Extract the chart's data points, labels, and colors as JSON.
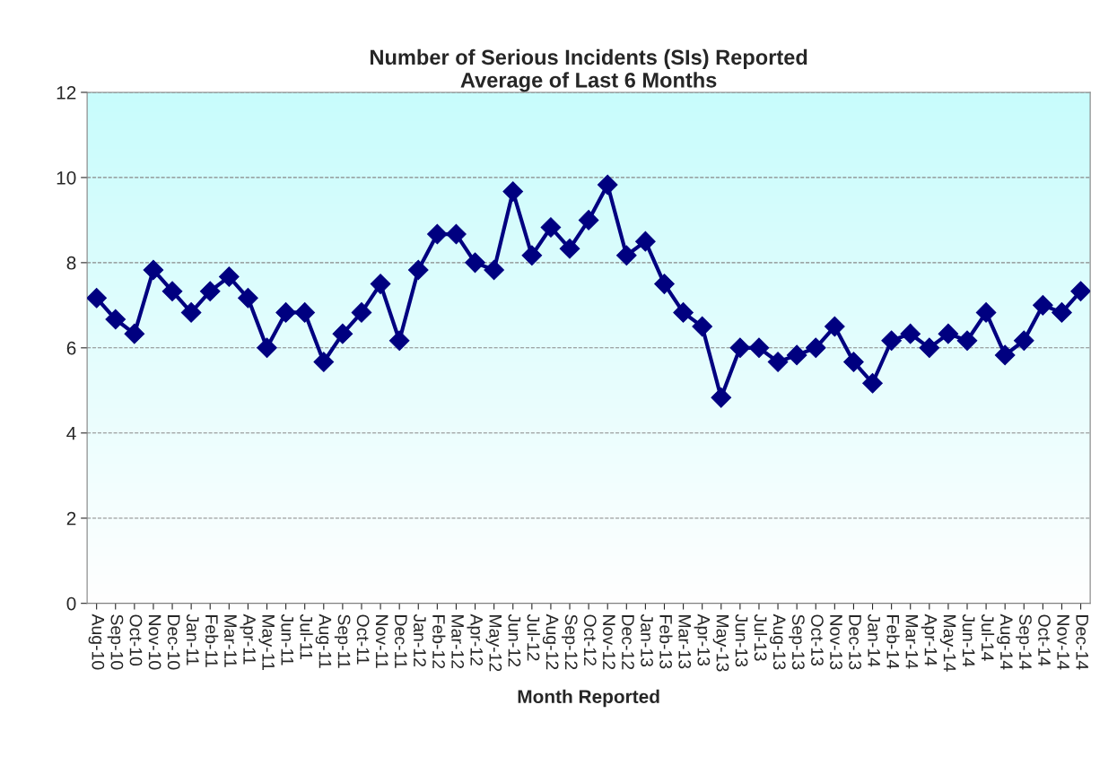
{
  "chart_data": {
    "type": "line",
    "title": "Number of Serious Incidents (SIs) Reported\nAverage of Last 6 Months",
    "xlabel": "Month Reported",
    "categories": [
      "Aug-10",
      "Sep-10",
      "Oct-10",
      "Nov-10",
      "Dec-10",
      "Jan-11",
      "Feb-11",
      "Mar-11",
      "Apr-11",
      "May-11",
      "Jun-11",
      "Jul-11",
      "Aug-11",
      "Sep-11",
      "Oct-11",
      "Nov-11",
      "Dec-11",
      "Jan-12",
      "Feb-12",
      "Mar-12",
      "Apr-12",
      "May-12",
      "Jun-12",
      "Jul-12",
      "Aug-12",
      "Sep-12",
      "Oct-12",
      "Nov-12",
      "Dec-12",
      "Jan-13",
      "Feb-13",
      "Mar-13",
      "Apr-13",
      "May-13",
      "Jun-13",
      "Jul-13",
      "Aug-13",
      "Sep-13",
      "Oct-13",
      "Nov-13",
      "Dec-13",
      "Jan-14",
      "Feb-14",
      "Mar-14",
      "Apr-14",
      "May-14",
      "Jun-14",
      "Jul-14",
      "Aug-14",
      "Sep-14",
      "Oct-14",
      "Nov-14",
      "Dec-14"
    ],
    "series": [
      {
        "color": "#000080",
        "values": [
          7.17,
          6.67,
          6.33,
          7.83,
          7.33,
          6.83,
          7.33,
          7.67,
          7.17,
          6.0,
          6.83,
          6.83,
          5.67,
          6.33,
          6.83,
          7.5,
          6.17,
          7.83,
          8.67,
          8.67,
          8.0,
          7.83,
          9.67,
          8.17,
          8.83,
          8.33,
          9.0,
          9.83,
          8.17,
          8.5,
          7.5,
          6.83,
          6.5,
          4.83,
          6.0,
          6.0,
          5.67,
          5.83,
          6.0,
          6.5,
          5.67,
          5.17,
          6.17,
          6.33,
          6.0,
          6.33,
          6.17,
          6.83,
          5.83,
          6.17,
          7.0,
          6.83,
          7.33
        ]
      }
    ],
    "ylim": [
      0,
      12
    ],
    "yticks": [
      0,
      2,
      4,
      6,
      8,
      10,
      12
    ],
    "grid": "y",
    "marker": "diamond",
    "line_style": "solid"
  }
}
